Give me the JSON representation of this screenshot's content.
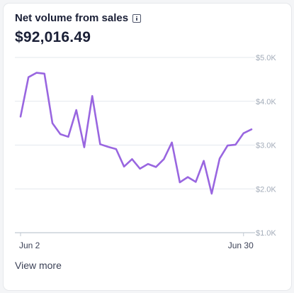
{
  "card": {
    "title": "Net volume from sales",
    "info_icon": "info-icon",
    "total": "$92,016.49",
    "view_more_label": "View more"
  },
  "colors": {
    "line": "#9966e0",
    "grid": "#e3e8ee",
    "tick_text": "#a3acb9",
    "axis": "#c1c9d2"
  },
  "chart_data": {
    "type": "line",
    "title": "",
    "xlabel": "",
    "ylabel": "",
    "x_tick_labels": [
      {
        "index": 0,
        "label": "Jun 2"
      },
      {
        "index": 28,
        "label": "Jun 30"
      }
    ],
    "y_ticks": [
      {
        "value": 5000,
        "label": "$5.0K"
      },
      {
        "value": 4000,
        "label": "$4.0K"
      },
      {
        "value": 3000,
        "label": "$3.0K"
      },
      {
        "value": 2000,
        "label": "$2.0K"
      },
      {
        "value": 1000,
        "label": "$1.0K"
      }
    ],
    "ylim": [
      1000,
      5000
    ],
    "grid": true,
    "series": [
      {
        "values": [
          3650,
          4550,
          4650,
          4630,
          3500,
          3250,
          3190,
          3800,
          2950,
          4120,
          3020,
          2960,
          2910,
          2510,
          2680,
          2460,
          2570,
          2500,
          2680,
          3060,
          2150,
          2270,
          2160,
          2640,
          1890,
          2690,
          2990,
          3010,
          3270,
          3360
        ]
      }
    ]
  }
}
